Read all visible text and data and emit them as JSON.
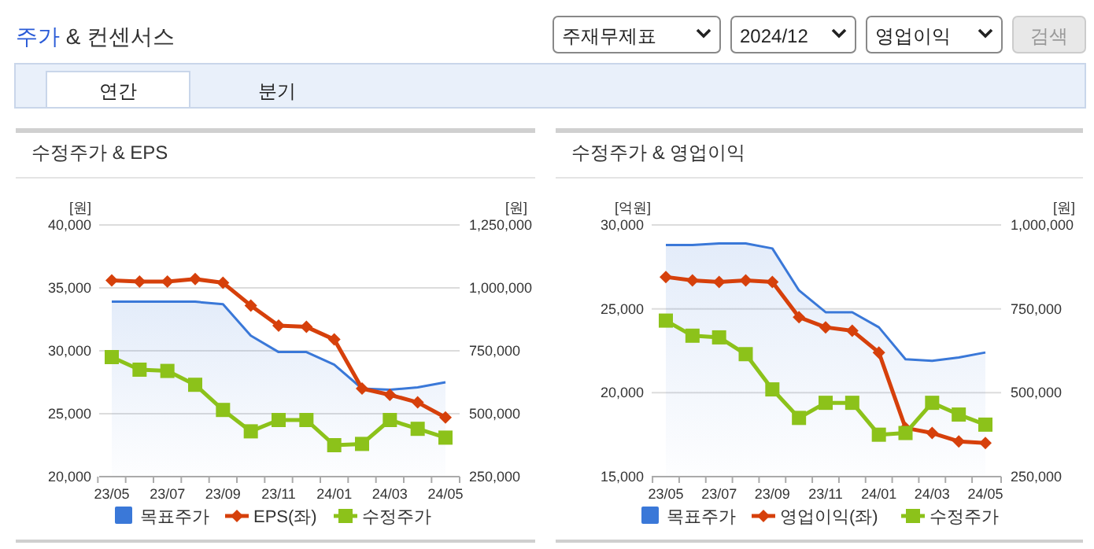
{
  "chart_data": [
    {
      "type": "line",
      "title": "수정주가 & EPS",
      "ylabel": "[원]",
      "y2label": "[원]",
      "annotations": [
        "주가 & 컨센서스",
        "주재무제표",
        "2024/12",
        "영업이익",
        "검색",
        "연간",
        "분기"
      ],
      "categories": [
        "23/05",
        null,
        "23/07",
        null,
        "23/09",
        null,
        "23/11",
        null,
        "24/01",
        null,
        "24/03",
        null,
        "24/05"
      ],
      "ylim": [
        20000,
        40000
      ],
      "yticks": [
        {
          "value": 20000,
          "label": "20,000"
        },
        {
          "value": 25000,
          "label": "25,000"
        },
        {
          "value": 30000,
          "label": "30,000"
        },
        {
          "value": 35000,
          "label": "35,000"
        },
        {
          "value": 40000,
          "label": "40,000"
        }
      ],
      "y2lim": [
        250000,
        1250000
      ],
      "y2ticks": [
        {
          "value": 250000,
          "label": "250,000"
        },
        {
          "value": 500000,
          "label": "500,000"
        },
        {
          "value": 750000,
          "label": "750,000"
        },
        {
          "value": 1000000,
          "label": "1,000,000"
        },
        {
          "value": 1250000,
          "label": "1,250,000"
        }
      ],
      "grid": "y",
      "legend": "bottom",
      "series": [
        {
          "name": "목표주가",
          "type": "area",
          "axis": "y2",
          "color": "#3a78d8",
          "values": [
            945000,
            945000,
            945000,
            945000,
            935000,
            810000,
            745000,
            745000,
            695000,
            600000,
            595000,
            605000,
            625000
          ]
        },
        {
          "name": "EPS(좌)",
          "marker": "diamond",
          "color": "#d6400b",
          "values": [
            35600,
            35500,
            35500,
            35700,
            35400,
            33600,
            32000,
            31900,
            30900,
            27000,
            26500,
            25900,
            24700
          ]
        },
        {
          "name": "수정주가",
          "marker": "square",
          "axis": "y2",
          "color": "#8cc21a",
          "values": [
            725000,
            675000,
            670000,
            615000,
            515000,
            430000,
            475000,
            475000,
            375000,
            380000,
            475000,
            440000,
            405000
          ]
        }
      ]
    },
    {
      "type": "line",
      "title": "수정주가 & 영업이익",
      "ylabel": "[억원]",
      "y2label": "[원]",
      "categories": [
        "23/05",
        null,
        "23/07",
        null,
        "23/09",
        null,
        "23/11",
        null,
        "24/01",
        null,
        "24/03",
        null,
        "24/05"
      ],
      "ylim": [
        15000,
        30000
      ],
      "yticks": [
        {
          "value": 15000,
          "label": "15,000"
        },
        {
          "value": 20000,
          "label": "20,000"
        },
        {
          "value": 25000,
          "label": "25,000"
        },
        {
          "value": 30000,
          "label": "30,000"
        }
      ],
      "y2lim": [
        250000,
        1000000
      ],
      "y2ticks": [
        {
          "value": 250000,
          "label": "250,000"
        },
        {
          "value": 500000,
          "label": "500,000"
        },
        {
          "value": 750000,
          "label": "750,000"
        },
        {
          "value": 1000000,
          "label": "1,000,000"
        }
      ],
      "grid": "y",
      "legend": "bottom",
      "series": [
        {
          "name": "목표주가",
          "type": "area",
          "axis": "y2",
          "color": "#3a78d8",
          "values": [
            940000,
            940000,
            945000,
            945000,
            930000,
            805000,
            740000,
            740000,
            695000,
            600000,
            595000,
            605000,
            620000
          ]
        },
        {
          "name": "영업이익(좌)",
          "marker": "diamond",
          "color": "#d6400b",
          "values": [
            26900,
            26700,
            26600,
            26700,
            26600,
            24500,
            23900,
            23700,
            22400,
            17900,
            17600,
            17100,
            17000
          ]
        },
        {
          "name": "수정주가",
          "marker": "square",
          "axis": "y2",
          "color": "#8cc21a",
          "values": [
            715000,
            670000,
            665000,
            615000,
            510000,
            425000,
            470000,
            470000,
            375000,
            380000,
            470000,
            435000,
            405000
          ]
        }
      ]
    }
  ]
}
